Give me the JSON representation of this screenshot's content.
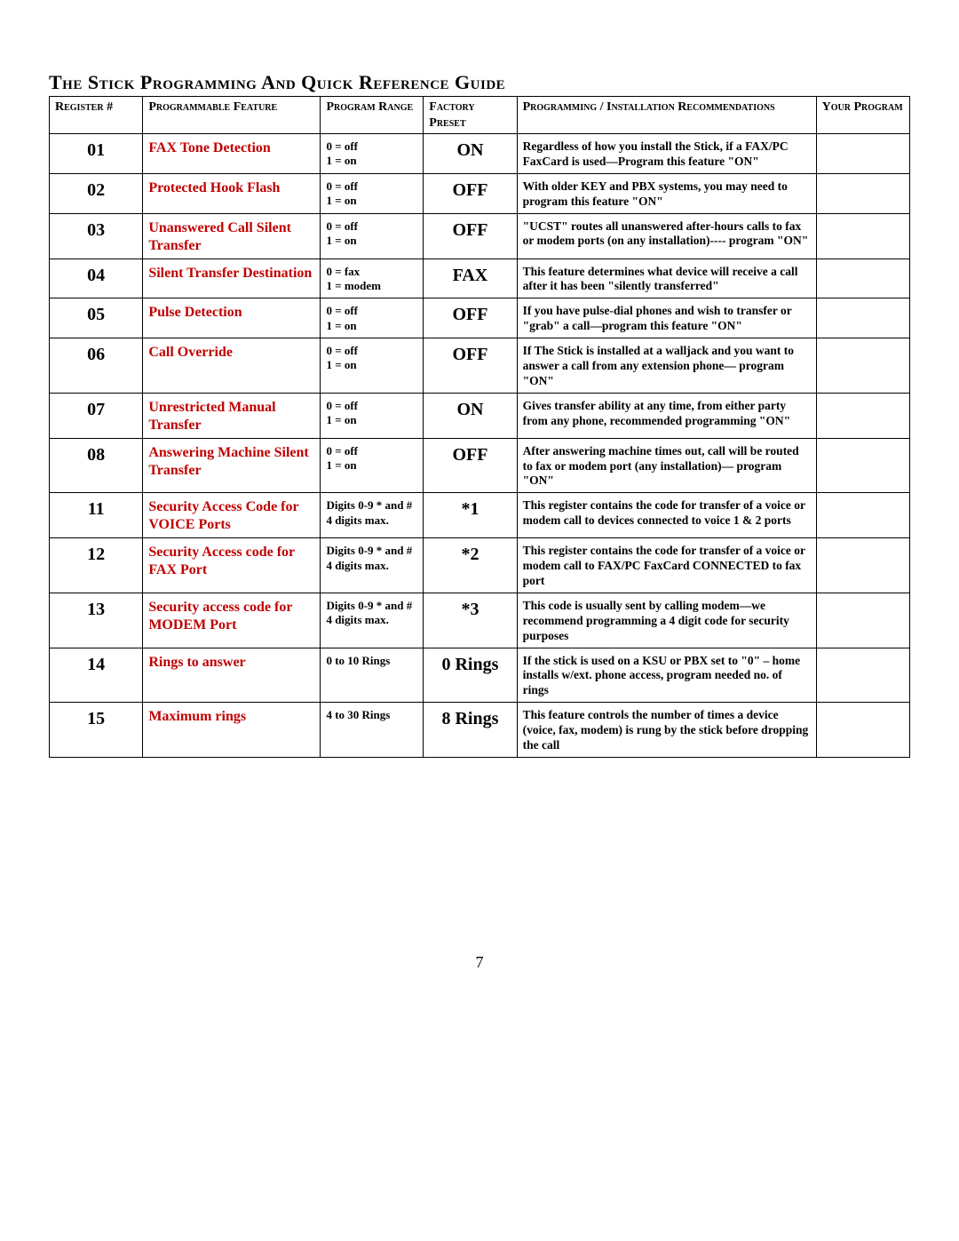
{
  "title": "The Stick Programming And Quick Reference Guide",
  "page_number": "7",
  "columns": [
    "Register #",
    "Programmable Feature",
    "Program Range",
    "Factory Preset",
    "Programming / Installation Recommendations",
    "Your Program"
  ],
  "rows": [
    {
      "register": "01",
      "feature": "FAX Tone Detection",
      "range": "0 = off\n1 = on",
      "preset": "ON",
      "recommend": "Regardless of how you install the Stick, if a FAX/PC FaxCard is used—Program this feature \"ON\""
    },
    {
      "register": "02",
      "feature": "Protected Hook Flash",
      "range": "0 = off\n1 = on",
      "preset": "OFF",
      "recommend": "With older KEY and PBX systems, you may need to program this feature \"ON\""
    },
    {
      "register": "03",
      "feature": "Unanswered Call Silent Transfer",
      "range": "0 = off\n1 = on",
      "preset": "OFF",
      "recommend": "\"UCST\" routes all unanswered after-hours calls to fax or modem ports (on any installation)---- program \"ON\""
    },
    {
      "register": "04",
      "feature": "Silent Transfer Destination",
      "range": "0 = fax\n1 = modem",
      "preset": "FAX",
      "recommend": "This feature determines what device will receive a call after it has been \"silently transferred\""
    },
    {
      "register": "05",
      "feature": "Pulse Detection",
      "range": "0 = off\n1 = on",
      "preset": "OFF",
      "recommend": "If you have pulse-dial phones and wish to transfer or \"grab\" a call—program this feature \"ON\""
    },
    {
      "register": "06",
      "feature": "Call Override",
      "range": "0 = off\n1 = on",
      "preset": "OFF",
      "recommend": "If The Stick is installed at a walljack and you want to answer a call from any extension phone— program \"ON\""
    },
    {
      "register": "07",
      "feature": "Unrestricted Manual Transfer",
      "range": "0 = off\n1 = on",
      "preset": "ON",
      "recommend": "Gives transfer ability at any time, from either party from any phone, recommended programming \"ON\""
    },
    {
      "register": "08",
      "feature": "Answering Machine Silent Transfer",
      "range": "0 = off\n1 = on",
      "preset": "OFF",
      "recommend": "After answering machine times out, call will be routed to fax or modem port (any installation)— program \"ON\""
    },
    {
      "register": "11",
      "feature": "Security Access Code for VOICE Ports",
      "range": "Digits 0-9 * and #\n4 digits max.",
      "preset": "*1",
      "recommend": "This register contains the code for transfer of a voice or modem call to devices connected to voice 1 & 2 ports"
    },
    {
      "register": "12",
      "feature": "Security Access code for FAX Port",
      "range": "Digits 0-9 * and #\n4 digits max.",
      "preset": "*2",
      "recommend": "This register contains the code for transfer of a voice or modem call to FAX/PC FaxCard CONNECTED to fax port"
    },
    {
      "register": "13",
      "feature": "Security access code for MODEM Port",
      "range": "Digits 0-9 * and #\n4 digits max.",
      "preset": "*3",
      "recommend": "This code is usually sent by calling modem—we recommend programming a 4 digit code for security purposes"
    },
    {
      "register": "14",
      "feature": "Rings to answer",
      "range": "0 to 10 Rings",
      "preset": "0 Rings",
      "recommend": "If the stick is used on a KSU or PBX set to \"0\" – home installs w/ext. phone access, program needed no. of rings"
    },
    {
      "register": "15",
      "feature": "Maximum rings",
      "range": "4 to 30 Rings",
      "preset": "8 Rings",
      "recommend": "This feature controls the number of times a device (voice, fax, modem) is rung by the stick before dropping the call"
    }
  ],
  "style": {
    "feature_color": "#c00000",
    "border_color": "#000000",
    "background": "#ffffff",
    "title_fontsize": 22,
    "register_fontsize": 20,
    "preset_fontsize": 20,
    "feature_fontsize": 16,
    "body_fontsize": 14
  }
}
